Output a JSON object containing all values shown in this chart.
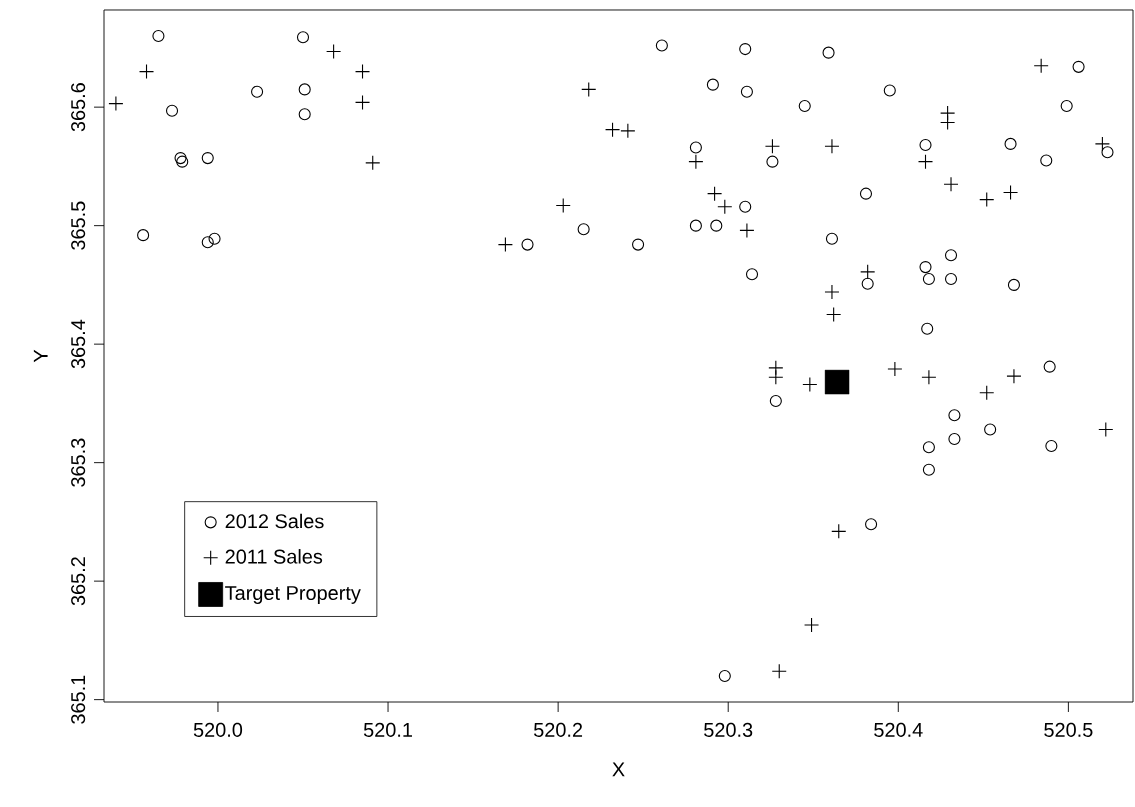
{
  "chart_data": {
    "type": "scatter",
    "xlabel": "X",
    "ylabel": "Y",
    "xlim": [
      519.933,
      520.538
    ],
    "ylim": [
      365.098,
      365.682
    ],
    "xticks": [
      {
        "value": 520,
        "label": "520.0"
      },
      520.1,
      520.2,
      520.3,
      520.4,
      520.5
    ],
    "yticks": [
      365.1,
      365.2,
      365.3,
      365.4,
      365.5,
      365.6
    ],
    "legend": "bottom left",
    "series": [
      {
        "name": "2012 Sales",
        "color": "#000000",
        "marker": "circle",
        "x": [
          519.965,
          520.05,
          520.023,
          520.051,
          520.051,
          519.973,
          519.978,
          519.979,
          519.994,
          519.956,
          519.994,
          519.998,
          520.261,
          520.31,
          520.291,
          520.311,
          520.281,
          520.326,
          520.31,
          520.281,
          520.293,
          520.215,
          520.182,
          520.247,
          520.314,
          520.359,
          520.395,
          520.345,
          520.506,
          520.499,
          520.416,
          520.466,
          520.487,
          520.523,
          520.381,
          520.361,
          520.382,
          520.431,
          520.416,
          520.418,
          520.431,
          520.468,
          520.417,
          520.489,
          520.328,
          520.433,
          520.418,
          520.433,
          520.454,
          520.49,
          520.418,
          520.384,
          520.298
        ],
        "values": [
          365.66,
          365.659,
          365.613,
          365.615,
          365.594,
          365.597,
          365.557,
          365.554,
          365.557,
          365.492,
          365.486,
          365.489,
          365.652,
          365.649,
          365.619,
          365.613,
          365.566,
          365.554,
          365.516,
          365.5,
          365.5,
          365.497,
          365.484,
          365.484,
          365.459,
          365.646,
          365.614,
          365.601,
          365.634,
          365.601,
          365.568,
          365.569,
          365.555,
          365.562,
          365.527,
          365.489,
          365.451,
          365.475,
          365.465,
          365.455,
          365.455,
          365.45,
          365.413,
          365.381,
          365.352,
          365.34,
          365.313,
          365.32,
          365.328,
          365.314,
          365.294,
          365.248,
          365.12
        ]
      },
      {
        "name": "2011 Sales",
        "color": "#000000",
        "marker": "cross",
        "x": [
          519.94,
          519.958,
          520.068,
          520.085,
          520.085,
          520.091,
          520.218,
          520.232,
          520.241,
          520.326,
          520.281,
          520.203,
          520.292,
          520.298,
          520.311,
          520.169,
          520.484,
          520.429,
          520.429,
          520.361,
          520.416,
          520.431,
          520.452,
          520.466,
          520.52,
          520.382,
          520.361,
          520.362,
          520.328,
          520.328,
          520.348,
          520.398,
          520.418,
          520.468,
          520.452,
          520.365,
          520.349,
          520.33,
          520.522
        ],
        "values": [
          365.603,
          365.63,
          365.647,
          365.63,
          365.604,
          365.553,
          365.615,
          365.581,
          365.58,
          365.567,
          365.554,
          365.517,
          365.527,
          365.516,
          365.496,
          365.484,
          365.635,
          365.595,
          365.587,
          365.567,
          365.554,
          365.535,
          365.522,
          365.528,
          365.569,
          365.461,
          365.444,
          365.425,
          365.38,
          365.372,
          365.366,
          365.379,
          365.372,
          365.373,
          365.359,
          365.242,
          365.163,
          365.124,
          365.328
        ]
      },
      {
        "name": "Target Property",
        "color": "#000000",
        "marker": "square",
        "x": [
          520.364
        ],
        "values": [
          365.368
        ]
      }
    ]
  }
}
